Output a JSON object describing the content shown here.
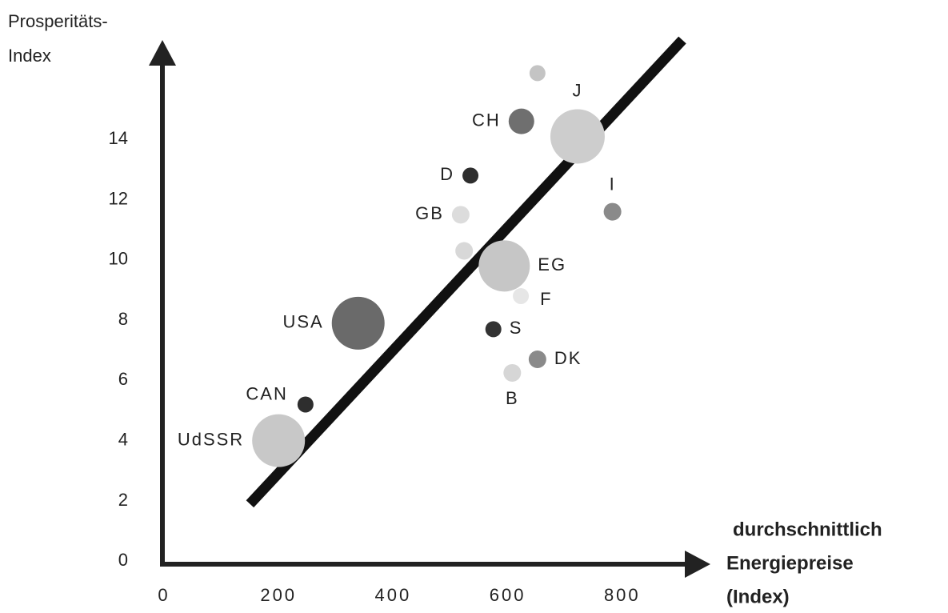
{
  "chart_data": {
    "type": "scatter",
    "ylabel": [
      "Prosperitäts-",
      "Index"
    ],
    "xlabel": [
      "durchschnittlich",
      "Energiepreise",
      "(Index)"
    ],
    "xlim": [
      0,
      950
    ],
    "ylim": [
      -0.1,
      17.3
    ],
    "xticks": [
      0,
      200,
      400,
      600,
      800
    ],
    "yticks": [
      0,
      2,
      4,
      6,
      8,
      10,
      12,
      14
    ],
    "grid": false,
    "labels": [
      null,
      "CH",
      "J",
      "D",
      "GB",
      "I",
      null,
      "EG",
      "F",
      "USA",
      "S",
      "DK",
      "B",
      "CAN",
      "UdSSR"
    ],
    "x": [
      652,
      624,
      722,
      535,
      518,
      783,
      524,
      594,
      623,
      339,
      575,
      652,
      608,
      247,
      200
    ],
    "values": [
      16.2,
      14.6,
      14.1,
      12.8,
      11.5,
      11.6,
      10.3,
      9.8,
      8.8,
      7.9,
      7.7,
      6.7,
      6.25,
      5.2,
      4.0
    ],
    "sizes": [
      10,
      16,
      34,
      10,
      11,
      11,
      11,
      32,
      10,
      33,
      10,
      11,
      11,
      10,
      33
    ],
    "colors": [
      "#c4c4c4",
      "#6f6f6f",
      "#cdcdcd",
      "#2e2e2e",
      "#dcdcdc",
      "#8a8a8a",
      "#d8d8d8",
      "#c6c6c6",
      "#e6e6e6",
      "#6a6a6a",
      "#333333",
      "#8a8a8a",
      "#d6d6d6",
      "#2e2e2e",
      "#c8c8c8"
    ],
    "trend_line": {
      "x": [
        150,
        905
      ],
      "y": [
        1.9,
        17.3
      ],
      "color": "#111111"
    }
  }
}
